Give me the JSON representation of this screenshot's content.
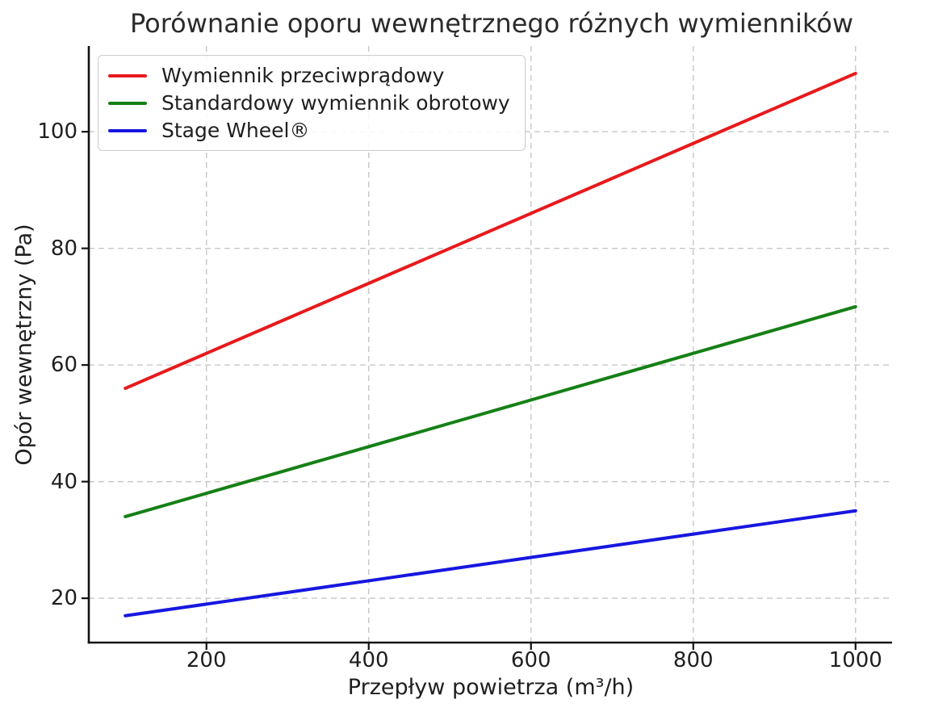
{
  "chart_data": {
    "type": "line",
    "title": "Porównanie oporu wewnętrznego różnych wymienników",
    "xlabel": "Przepływ powietrza (m³/h)",
    "ylabel": "Opór wewnętrzny (Pa)",
    "x": [
      100,
      200,
      300,
      400,
      500,
      600,
      700,
      800,
      900,
      1000
    ],
    "series": [
      {
        "name": "Wymiennik przeciwprądowy",
        "color": "#e8191c",
        "values": [
          56,
          62,
          68,
          74,
          80,
          86,
          92,
          98,
          104,
          110
        ]
      },
      {
        "name": "Standardowy wymiennik obrotowy",
        "color": "#158015",
        "values": [
          34,
          38,
          42,
          46,
          50,
          54,
          58,
          62,
          66,
          70
        ]
      },
      {
        "name": "Stage Wheel®",
        "color": "#1717e0",
        "values": [
          17,
          19,
          21,
          23,
          25,
          27,
          29,
          31,
          33,
          35
        ]
      }
    ],
    "xticks": [
      200,
      400,
      600,
      800,
      1000
    ],
    "yticks": [
      20,
      40,
      60,
      80,
      100
    ],
    "xlim": [
      55,
      1045
    ],
    "ylim": [
      12.4,
      114.7
    ],
    "grid": "dashed-both-axes",
    "legend_position": "upper-left",
    "spines": [
      "left",
      "bottom"
    ],
    "background_color": "#ffffff"
  }
}
